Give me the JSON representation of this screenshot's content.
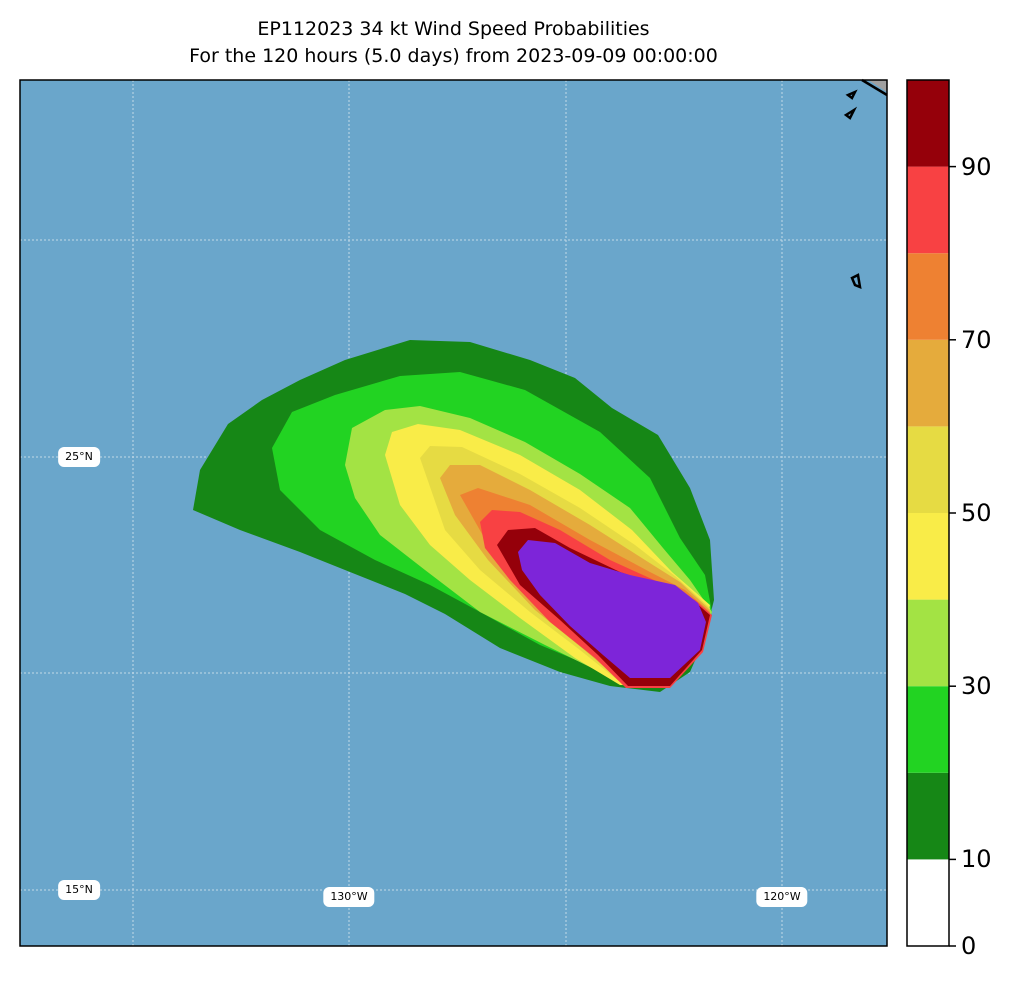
{
  "title_line1": "EP112023 34 kt Wind Speed Probabilities",
  "title_line2": "For the 120 hours (5.0 days) from 2023-09-09 00:00:00",
  "map": {
    "ocean_color": "#6aa6cb",
    "lat_labels": [
      "25°N",
      "15°N"
    ],
    "lon_labels": [
      "130°W",
      "120°W"
    ]
  },
  "colorbar": {
    "levels": [
      0,
      10,
      20,
      30,
      40,
      50,
      60,
      70,
      80,
      90,
      100
    ],
    "colors": [
      "#ffffff",
      "#168716",
      "#22d322",
      "#a3e344",
      "#f9ec48",
      "#e6db43",
      "#e5ab3c",
      "#ee8132",
      "#f84143",
      "#95000a",
      "#7d25d9"
    ],
    "tick_labels": [
      "0",
      "10",
      "30",
      "50",
      "70",
      "90"
    ]
  }
}
